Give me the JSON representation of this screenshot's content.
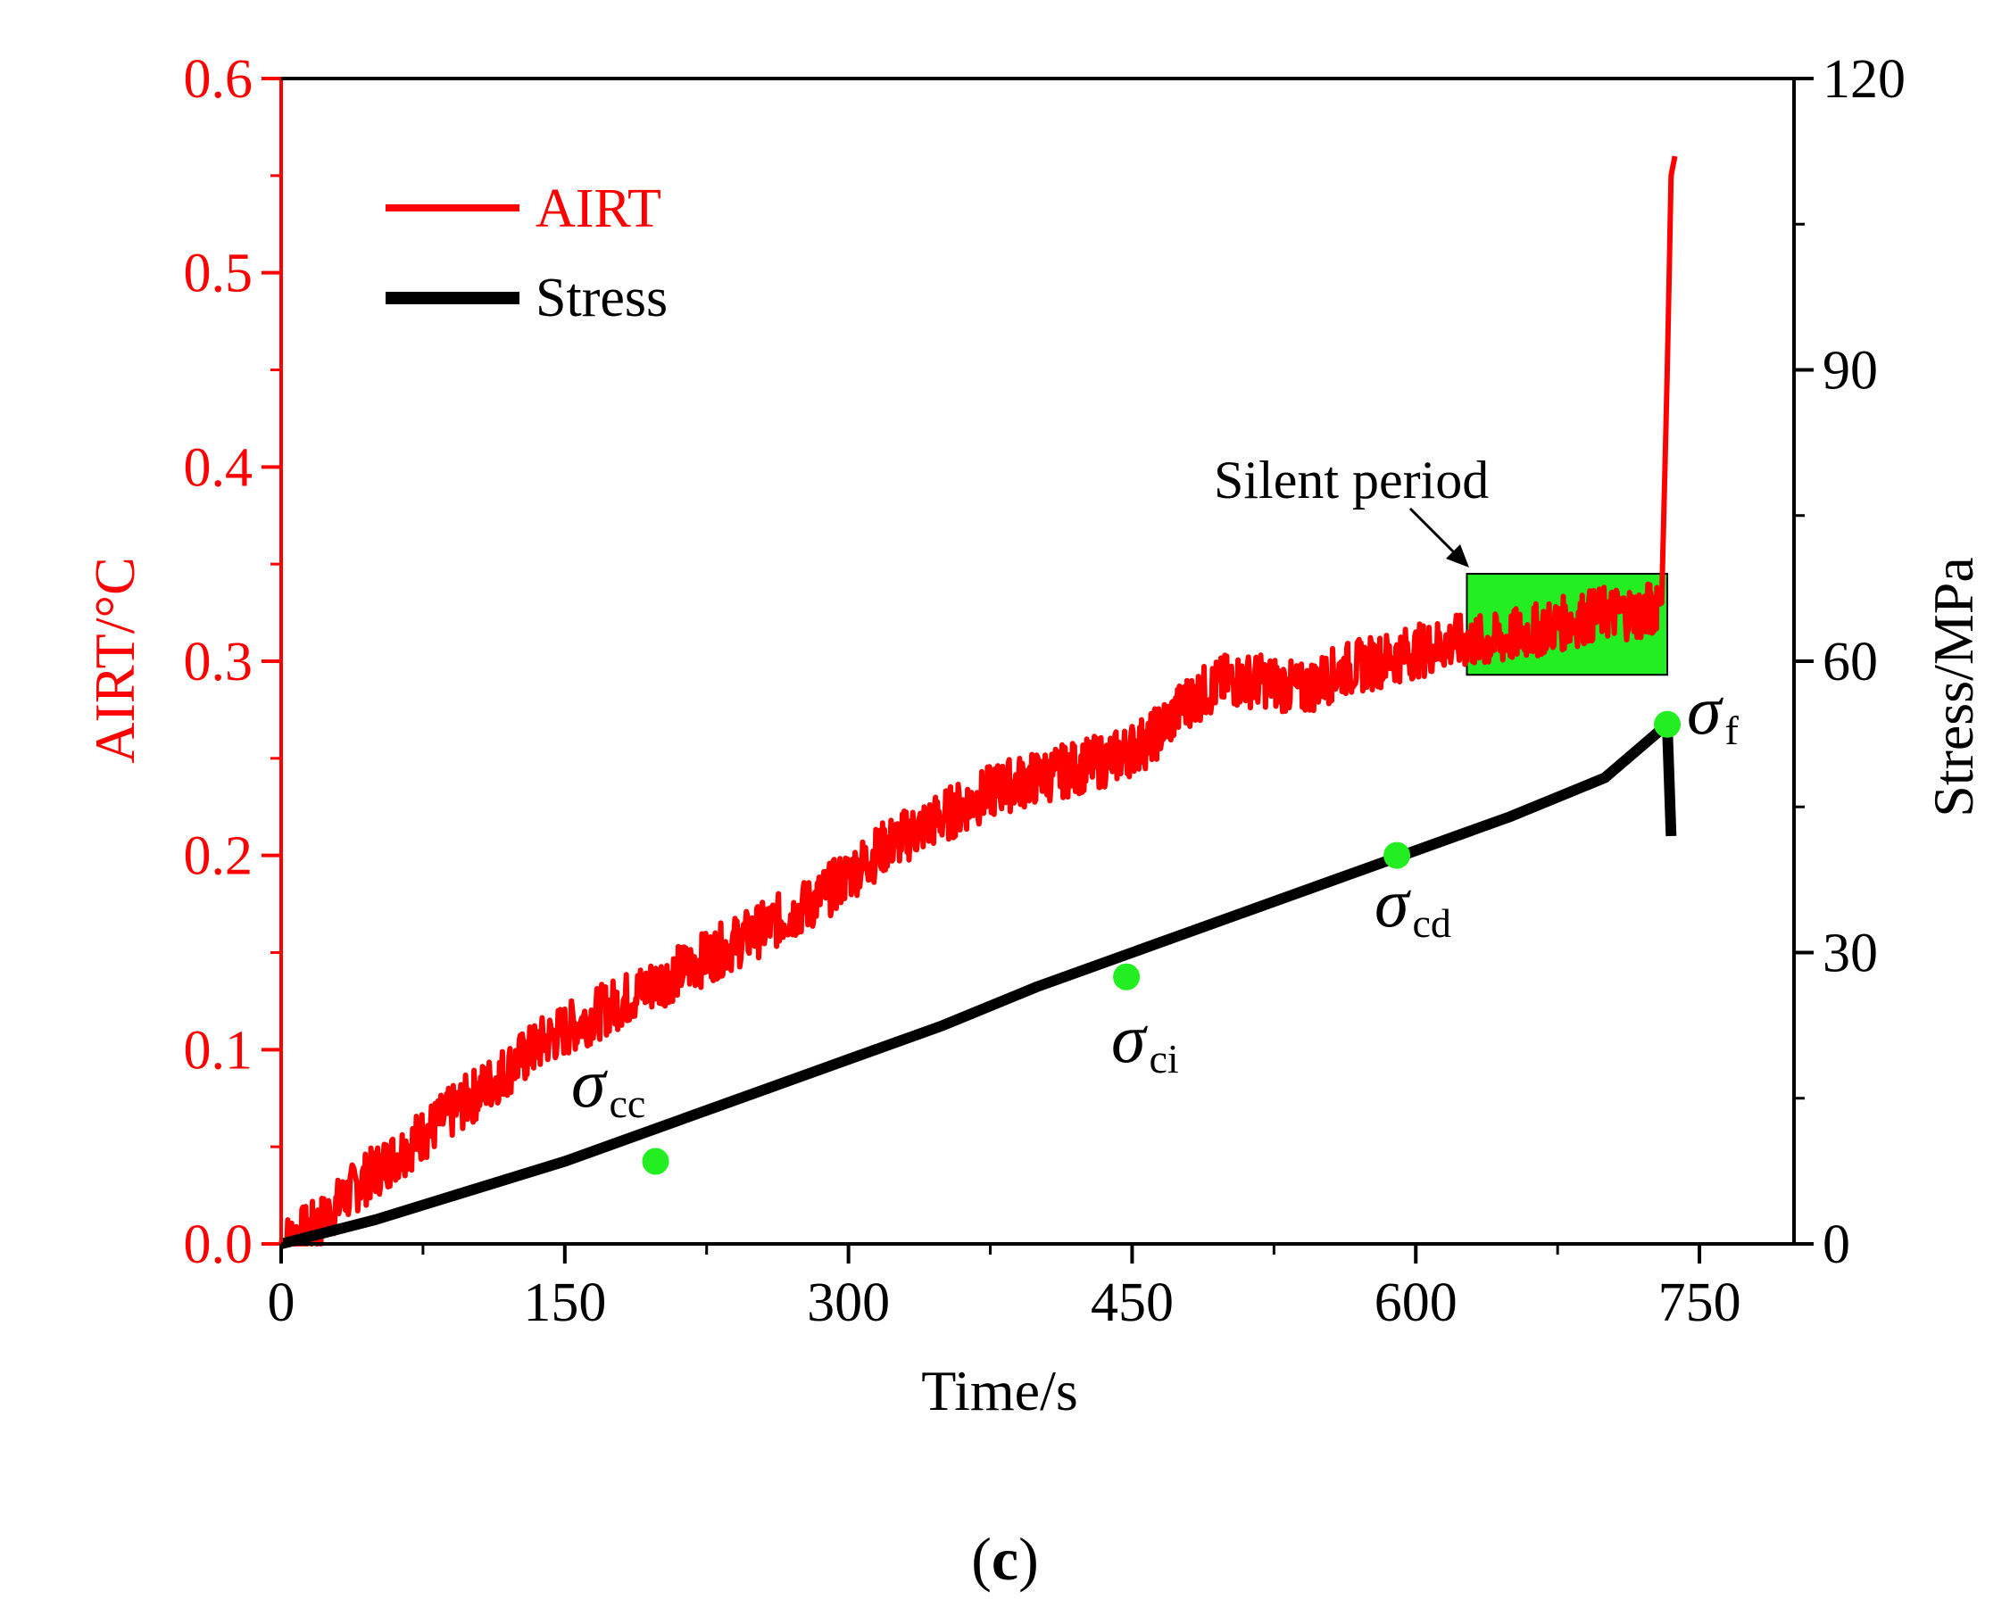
{
  "chart_data": {
    "type": "line",
    "caption": {
      "open": "(",
      "letter": "c",
      "close": ")"
    },
    "xlabel": "Time/s",
    "ylabel_left": "AIRT/°C",
    "ylabel_right": "Stress/MPa",
    "xlim": [
      0,
      800
    ],
    "ylim_left": [
      0,
      0.6
    ],
    "ylim_right": [
      0,
      120
    ],
    "x_ticks": [
      "0",
      "150",
      "300",
      "450",
      "600",
      "750"
    ],
    "y_left_ticks": [
      "0.0",
      "0.1",
      "0.2",
      "0.3",
      "0.4",
      "0.5",
      "0.6"
    ],
    "y_right_ticks": [
      "0",
      "30",
      "60",
      "90",
      "120"
    ],
    "legend": [
      {
        "label": "AIRT",
        "color": "#ff0000"
      },
      {
        "label": "Stress",
        "color": "#000000"
      }
    ],
    "series": [
      {
        "name": "AIRT",
        "axis": "left",
        "color": "#ff0000",
        "x": [
          0,
          20,
          40,
          60,
          80,
          100,
          120,
          140,
          160,
          180,
          200,
          220,
          240,
          260,
          280,
          300,
          320,
          340,
          360,
          380,
          400,
          420,
          440,
          460,
          480,
          500,
          520,
          540,
          560,
          580,
          600,
          620,
          640,
          660,
          680,
          700,
          720,
          730,
          733,
          735,
          737
        ],
        "values": [
          0.0,
          0.01,
          0.03,
          0.045,
          0.06,
          0.075,
          0.09,
          0.105,
          0.115,
          0.125,
          0.135,
          0.145,
          0.155,
          0.165,
          0.175,
          0.19,
          0.205,
          0.215,
          0.225,
          0.235,
          0.24,
          0.245,
          0.25,
          0.26,
          0.28,
          0.29,
          0.29,
          0.285,
          0.295,
          0.3,
          0.305,
          0.31,
          0.31,
          0.315,
          0.32,
          0.325,
          0.325,
          0.33,
          0.45,
          0.55,
          0.56
        ]
      },
      {
        "name": "Stress",
        "axis": "right",
        "color": "#000000",
        "x": [
          0,
          50,
          100,
          150,
          200,
          250,
          300,
          350,
          400,
          450,
          500,
          550,
          600,
          650,
          700,
          733,
          735
        ],
        "values": [
          0,
          2.5,
          5.5,
          8.5,
          12,
          15.5,
          19,
          22.5,
          26.5,
          30,
          33.5,
          37,
          40.5,
          44,
          48,
          53.5,
          42
        ]
      }
    ],
    "markers": [
      {
        "name": "σ",
        "sub": "cc",
        "x": 198,
        "stress": 8.5,
        "color": "#22ee22"
      },
      {
        "name": "σ",
        "sub": "ci",
        "x": 447,
        "stress": 27.5,
        "color": "#22ee22"
      },
      {
        "name": "σ",
        "sub": "cd",
        "x": 590,
        "stress": 40,
        "color": "#22ee22"
      },
      {
        "name": "σ",
        "sub": "f",
        "x": 733,
        "stress": 53.5,
        "color": "#22ee22"
      }
    ],
    "silent_period": {
      "label": "Silent period",
      "x_range": [
        627,
        733
      ],
      "y_range": [
        0.293,
        0.345
      ],
      "color": "#22ee22"
    }
  }
}
